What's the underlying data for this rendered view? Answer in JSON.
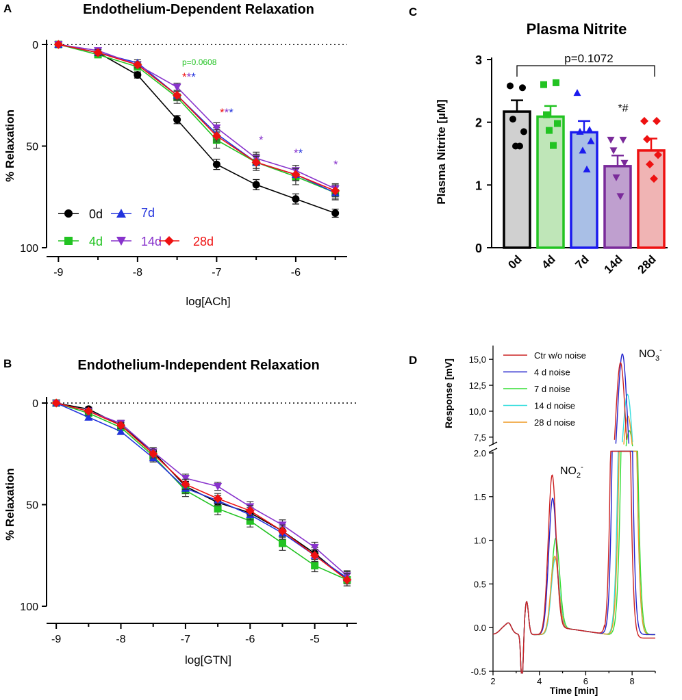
{
  "figure": {
    "panel_letters": [
      "A",
      "B",
      "C",
      "D"
    ]
  },
  "chart_data": [
    {
      "panel": "A",
      "type": "line",
      "title": "Endothelium-Dependent Relaxation",
      "xlabel": "log[ACh]",
      "ylabel": "% Relaxation",
      "xlim": [
        -9.15,
        -5.35
      ],
      "ylim": [
        0,
        100
      ],
      "y_inverted": true,
      "x_ticks": [
        -9,
        -8,
        -7,
        -6
      ],
      "x_tick_labels": [
        "-9",
        "-8",
        "-7",
        "-6"
      ],
      "y_ticks": [
        0,
        50,
        100
      ],
      "y_tick_labels": [
        "0",
        "50",
        "100"
      ],
      "x": [
        -9,
        -8.5,
        -8,
        -7.5,
        -7,
        -6.5,
        -6,
        -5.5
      ],
      "series": [
        {
          "name": "0d",
          "color": "#000000",
          "marker": "circle",
          "values": [
            0,
            4,
            15,
            37,
            59,
            69,
            76,
            83
          ],
          "errors": [
            0,
            1.5,
            1.5,
            2,
            2.5,
            2.5,
            2.5,
            2
          ]
        },
        {
          "name": "4d",
          "color": "#22c322",
          "marker": "square",
          "values": [
            0,
            5,
            11,
            26,
            47,
            58,
            65,
            73
          ],
          "errors": [
            0,
            1.5,
            1.5,
            3,
            4,
            4,
            4,
            3.5
          ]
        },
        {
          "name": "7d",
          "color": "#2233dd",
          "marker": "triangle-up",
          "values": [
            0,
            4,
            9,
            25,
            44,
            58,
            64,
            73
          ],
          "errors": [
            0,
            1.5,
            1.5,
            2.5,
            3,
            3,
            3,
            3
          ]
        },
        {
          "name": "14d",
          "color": "#8833cc",
          "marker": "triangle-down",
          "values": [
            0,
            3,
            10,
            21,
            41,
            56,
            62,
            71
          ],
          "errors": [
            0,
            1,
            1.5,
            2,
            2.5,
            3,
            2.5,
            2.5
          ]
        },
        {
          "name": "28d",
          "color": "#ee1111",
          "marker": "diamond",
          "values": [
            0,
            4,
            10,
            25,
            45,
            58,
            64,
            72
          ],
          "errors": [
            0,
            1.5,
            1.5,
            2,
            3,
            3,
            3,
            3
          ]
        }
      ],
      "legend_labels": {
        "d0": "0d",
        "d7": "7d",
        "d4": "4d",
        "d14": "14d",
        "d28": "28d"
      },
      "annotations": {
        "p_value": "p=0.0608",
        "star_single": "*",
        "star_double": "**"
      }
    },
    {
      "panel": "B",
      "type": "line",
      "title": "Endothelium-Independent Relaxation",
      "xlabel": "log[GTN]",
      "ylabel": "% Relaxation",
      "xlim": [
        -9.15,
        -4.35
      ],
      "ylim": [
        0,
        100
      ],
      "y_inverted": true,
      "x_ticks": [
        -9,
        -8,
        -7,
        -6,
        -5
      ],
      "x_tick_labels": [
        "-9",
        "-8",
        "-7",
        "-6",
        "-5"
      ],
      "y_ticks": [
        0,
        50,
        100
      ],
      "y_tick_labels": [
        "0",
        "50",
        "100"
      ],
      "x": [
        -9,
        -8.5,
        -8,
        -7.5,
        -7,
        -6.5,
        -6,
        -5.5,
        -5,
        -4.5
      ],
      "series": [
        {
          "name": "0d",
          "color": "#000000",
          "marker": "circle",
          "values": [
            0,
            3,
            11,
            24,
            41,
            49,
            54,
            63,
            74,
            87
          ],
          "errors": [
            0,
            1,
            1.5,
            2,
            2.5,
            2.5,
            2.5,
            3,
            3,
            3
          ]
        },
        {
          "name": "4d",
          "color": "#22c322",
          "marker": "square",
          "values": [
            0,
            5,
            12,
            26,
            43,
            52,
            58,
            69,
            80,
            87
          ],
          "errors": [
            0,
            1,
            1.5,
            2,
            3,
            3,
            3,
            3.5,
            3,
            3
          ]
        },
        {
          "name": "7d",
          "color": "#2233dd",
          "marker": "triangle-up",
          "values": [
            0,
            7,
            14,
            27,
            42,
            48,
            55,
            64,
            75,
            86
          ],
          "errors": [
            0,
            1,
            1.5,
            2,
            2.5,
            2.5,
            2.5,
            3,
            3,
            3
          ]
        },
        {
          "name": "14d",
          "color": "#8833cc",
          "marker": "triangle-down",
          "values": [
            0,
            4,
            10,
            24,
            37,
            41,
            51,
            60,
            71,
            85
          ],
          "errors": [
            0,
            1,
            1.5,
            2,
            2,
            2,
            2.5,
            2.5,
            2.5,
            2.5
          ]
        },
        {
          "name": "28d",
          "color": "#ee1111",
          "marker": "diamond",
          "values": [
            0,
            4,
            11,
            25,
            40,
            47,
            53,
            63,
            75,
            87
          ],
          "errors": [
            0,
            1,
            1.5,
            2,
            2.5,
            2.5,
            2.5,
            3,
            3,
            3
          ]
        }
      ]
    },
    {
      "panel": "C",
      "type": "bar",
      "title": "Plasma Nitrite",
      "ylabel": "Plasma Nitrite [µM]",
      "ylim": [
        0,
        3
      ],
      "y_ticks": [
        0,
        1,
        2,
        3
      ],
      "y_tick_labels": [
        "0",
        "1",
        "2",
        "3"
      ],
      "categories": [
        "0d",
        "4d",
        "7d",
        "14d",
        "28d"
      ],
      "values": [
        2.17,
        2.09,
        1.84,
        1.3,
        1.55
      ],
      "errors": [
        0.18,
        0.17,
        0.18,
        0.17,
        0.19
      ],
      "colors": [
        "#000000",
        "#22c322",
        "#1a1aee",
        "#7a2a9a",
        "#ee1111"
      ],
      "fills": [
        "#d0d0d0",
        "#bfe6b8",
        "#a9bfe6",
        "#bf9fcf",
        "#f0b4b4"
      ],
      "points": [
        [
          2.58,
          2.55,
          2.05,
          1.85,
          1.62,
          1.62
        ],
        [
          2.6,
          2.63,
          2.12,
          1.98,
          1.87,
          1.63
        ],
        [
          2.47,
          1.88,
          1.85,
          1.7,
          1.55,
          1.25
        ],
        [
          1.72,
          1.72,
          1.55,
          1.35,
          1.12,
          0.82
        ],
        [
          2.02,
          2.02,
          1.73,
          1.48,
          1.33,
          1.1
        ]
      ],
      "markers": [
        "circle",
        "square",
        "triangle-up",
        "triangle-down",
        "diamond"
      ],
      "annotations": {
        "p_value": "p=0.1072",
        "sig_14d": "*#"
      }
    },
    {
      "panel": "D",
      "type": "line",
      "xlabel": "Time [min]",
      "ylabel": "Response [mV]",
      "xlim": [
        2,
        9
      ],
      "x_ticks": [
        2,
        4,
        6,
        8
      ],
      "x_tick_labels": [
        "2",
        "4",
        "6",
        "8"
      ],
      "lower_ylim": [
        -0.5,
        2.0
      ],
      "lower_y_ticks": [
        -0.5,
        0.0,
        0.5,
        1.0,
        1.5,
        2.0
      ],
      "lower_y_tick_labels": [
        "-0.5",
        "0.0",
        "0.5",
        "1.0",
        "1.5",
        "2.0"
      ],
      "upper_ylim": [
        6.5,
        16.0
      ],
      "upper_y_ticks": [
        7.5,
        10.0,
        12.5,
        15.0
      ],
      "upper_y_tick_labels": [
        "7,5",
        "10,0",
        "12,5",
        "15,0"
      ],
      "peak_labels": {
        "nitrite": "NO",
        "nitrite_sub": "2",
        "nitrate": "NO",
        "nitrate_sub": "3",
        "charge": "-"
      },
      "series": [
        {
          "name": "Ctr w/o noise",
          "color": "#cc2222",
          "no2_peak": 1.8,
          "no2_rt": 4.55,
          "no3_peak": 14.8,
          "no3_rt": 7.5
        },
        {
          "name": "4 d noise",
          "color": "#2222cc",
          "no2_peak": 1.53,
          "no2_rt": 4.57,
          "no3_peak": 15.6,
          "no3_rt": 7.58
        },
        {
          "name": "7 d noise",
          "color": "#33dd33",
          "no2_peak": 1.05,
          "no2_rt": 4.7,
          "no3_peak": 8.2,
          "no3_rt": 7.88
        },
        {
          "name": "14 d noise",
          "color": "#33dddd",
          "no2_peak": 0.82,
          "no2_rt": 4.68,
          "no3_peak": 11.7,
          "no3_rt": 7.8
        },
        {
          "name": "28 d noise",
          "color": "#ee9922",
          "no2_peak": 0.85,
          "no2_rt": 4.66,
          "no3_peak": 9.6,
          "no3_rt": 7.82
        }
      ]
    }
  ]
}
